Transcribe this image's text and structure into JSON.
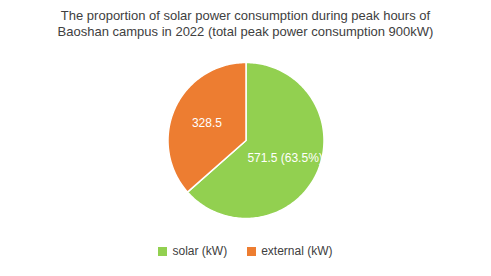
{
  "chart_data": {
    "type": "pie",
    "title": "The proportion of solar power consumption during peak hours of Baoshan campus in 2022 (total peak power consumption 900kW)",
    "categories": [
      "solar (kW)",
      "external (kW)"
    ],
    "values": [
      571.5,
      328.5
    ],
    "value_labels": [
      "571.5 (63.5%)",
      "328.5"
    ],
    "colors": [
      "#92d050",
      "#ed7d31"
    ],
    "data_labels": true,
    "legend": "bottom"
  }
}
